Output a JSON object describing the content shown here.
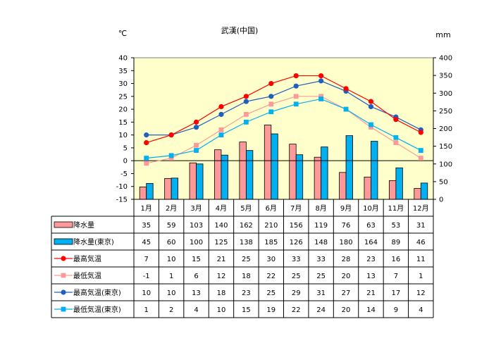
{
  "chart_data": {
    "type": "bar+line",
    "title": "武漢(中国)",
    "left_unit": "℃",
    "right_unit": "mm",
    "left_axis": {
      "min": -15,
      "max": 40,
      "step": 5
    },
    "right_axis": {
      "min": 0,
      "max": 400,
      "step": 50
    },
    "categories": [
      "1月",
      "2月",
      "3月",
      "4月",
      "5月",
      "6月",
      "7月",
      "8月",
      "9月",
      "10月",
      "11月",
      "12月"
    ],
    "series": [
      {
        "name": "降水量",
        "type": "bar",
        "axis": "right",
        "color": "#FF9999",
        "values": [
          35,
          59,
          103,
          140,
          162,
          210,
          156,
          119,
          76,
          63,
          53,
          31
        ]
      },
      {
        "name": "降水量(東京)",
        "type": "bar",
        "axis": "right",
        "color": "#00B0F0",
        "values": [
          45,
          60,
          100,
          125,
          138,
          185,
          126,
          148,
          180,
          164,
          89,
          46
        ]
      },
      {
        "name": "最高気温",
        "type": "line",
        "axis": "left",
        "color": "#FF0000",
        "marker": "circle",
        "values": [
          7,
          10,
          15,
          21,
          25,
          30,
          33,
          33,
          28,
          23,
          16,
          11
        ]
      },
      {
        "name": "最低気温",
        "type": "line",
        "axis": "left",
        "color": "#FF9999",
        "marker": "square",
        "values": [
          -1,
          1,
          6,
          12,
          18,
          22,
          25,
          25,
          20,
          13,
          7,
          1
        ]
      },
      {
        "name": "最高気温(東京)",
        "type": "line",
        "axis": "left",
        "color": "#1F5FBF",
        "marker": "circle",
        "values": [
          10,
          10,
          13,
          18,
          23,
          25,
          29,
          31,
          27,
          21,
          17,
          12
        ]
      },
      {
        "name": "最低気温(東京)",
        "type": "line",
        "axis": "left",
        "color": "#00B0F0",
        "marker": "square",
        "values": [
          1,
          2,
          4,
          10,
          15,
          19,
          22,
          24,
          20,
          14,
          9,
          4
        ]
      }
    ],
    "plot_background": "#FFFFCC",
    "grid": false
  }
}
